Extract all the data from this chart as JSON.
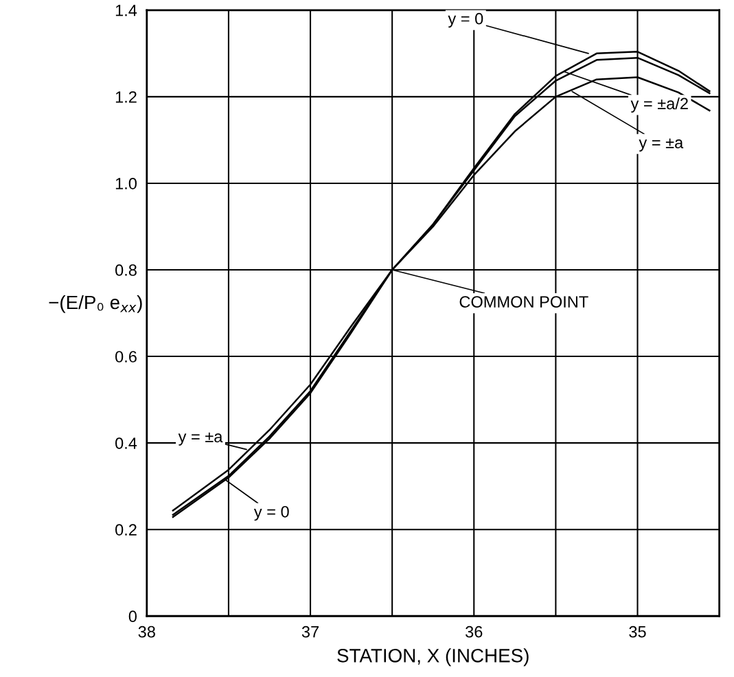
{
  "chart_data": {
    "type": "line",
    "xlabel": "STATION, X (INCHES)",
    "ylabel": "−(E/P₀ e$_{xx}$)",
    "x": [
      37.84,
      37.5,
      37.25,
      37.0,
      36.75,
      36.5,
      36.25,
      36.0,
      35.75,
      35.5,
      35.25,
      35.0,
      34.75,
      34.56
    ],
    "series": [
      {
        "color": "#000000",
        "values": [
          0.229,
          0.32,
          0.41,
          0.515,
          0.655,
          0.8,
          0.905,
          1.035,
          1.16,
          1.248,
          1.3,
          1.304,
          1.26,
          1.213
        ]
      },
      {
        "color": "#000000",
        "values": [
          0.234,
          0.324,
          0.415,
          0.52,
          0.66,
          0.8,
          0.905,
          1.03,
          1.155,
          1.237,
          1.285,
          1.29,
          1.25,
          1.208
        ]
      },
      {
        "color": "#000000",
        "values": [
          0.244,
          0.338,
          0.43,
          0.535,
          0.67,
          0.8,
          0.9,
          1.019,
          1.12,
          1.2,
          1.24,
          1.245,
          1.21,
          1.168
        ]
      }
    ],
    "xlim": [
      38,
      34.5
    ],
    "xticks": [
      38,
      {
        "value": 37.5,
        "label": null
      },
      37,
      {
        "value": 36.5,
        "label": null
      },
      36,
      {
        "value": 35.5,
        "label": null
      },
      35
    ],
    "ylim": [
      0,
      1.4
    ],
    "yticks": [
      0,
      0.2,
      0.4,
      0.6,
      0.8,
      {
        "value": 1.0,
        "label": "1.0"
      },
      1.2,
      1.4
    ],
    "grid": true,
    "marker": "none",
    "line_style": "solid",
    "annotations": [
      {
        "text": "y = 0",
        "x": 35.3,
        "y": 1.3
      },
      {
        "text": "y = ±a/2",
        "x": 35.45,
        "y": 1.258
      },
      {
        "text": "y = ±a",
        "x": 35.4,
        "y": 1.212
      },
      {
        "text": "COMMON POINT",
        "x": 36.5,
        "y": 0.8
      },
      {
        "text": "y = ±a",
        "x": 37.39,
        "y": 0.385
      },
      {
        "text": "y = 0",
        "x": 37.52,
        "y": 0.315
      }
    ]
  }
}
